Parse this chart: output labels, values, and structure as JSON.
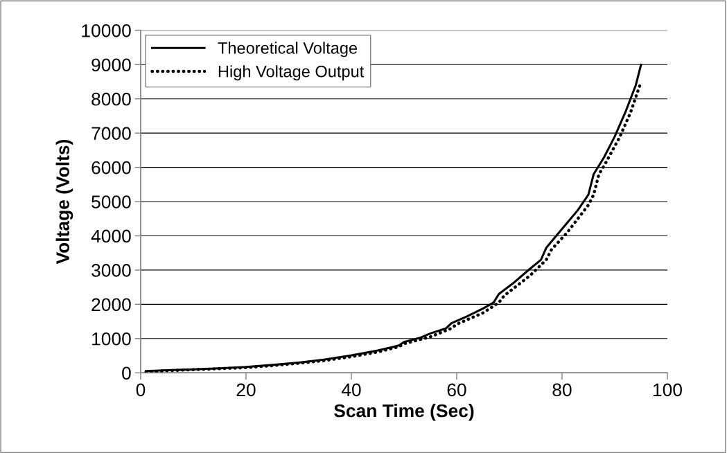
{
  "chart_data": {
    "type": "line",
    "xlabel": "Scan Time (Sec)",
    "ylabel": "Voltage (Volts)",
    "xlim": [
      0,
      100
    ],
    "xticks": [
      0,
      20,
      40,
      60,
      80,
      100
    ],
    "ylim": [
      0,
      10000
    ],
    "yticks": [
      0,
      1000,
      2000,
      3000,
      4000,
      5000,
      6000,
      7000,
      8000,
      9000,
      10000
    ],
    "grid": "y",
    "legend": "top left",
    "marker": "none",
    "series": [
      {
        "name": "Theoretical Voltage",
        "color": "#000000",
        "line_style": "solid",
        "x": [
          1,
          5,
          10,
          15,
          20,
          25,
          30,
          35,
          40,
          45,
          48,
          49,
          50,
          53,
          55,
          58,
          59,
          62,
          65,
          67,
          68,
          71,
          74,
          76,
          77,
          80,
          83,
          85,
          86,
          88,
          90,
          92,
          94,
          95
        ],
        "values": [
          50,
          75,
          100,
          130,
          170,
          230,
          300,
          390,
          510,
          650,
          760,
          800,
          900,
          1020,
          1150,
          1300,
          1450,
          1650,
          1880,
          2050,
          2300,
          2650,
          3050,
          3300,
          3650,
          4200,
          4750,
          5200,
          5800,
          6300,
          6900,
          7600,
          8400,
          9000
        ]
      },
      {
        "name": "High Voltage Output",
        "color": "#000000",
        "line_style": "dotted",
        "x": [
          1,
          5,
          10,
          15,
          20,
          25,
          30,
          35,
          40,
          45,
          49,
          50,
          55,
          59,
          60,
          65,
          68,
          69,
          74,
          77,
          78,
          81,
          85,
          86,
          87,
          88,
          91,
          93,
          95
        ],
        "values": [
          20,
          60,
          90,
          120,
          150,
          210,
          280,
          360,
          470,
          610,
          760,
          850,
          1050,
          1300,
          1420,
          1750,
          2050,
          2250,
          2850,
          3300,
          3600,
          4100,
          4900,
          5200,
          5800,
          6050,
          6900,
          7600,
          8500
        ]
      }
    ]
  }
}
